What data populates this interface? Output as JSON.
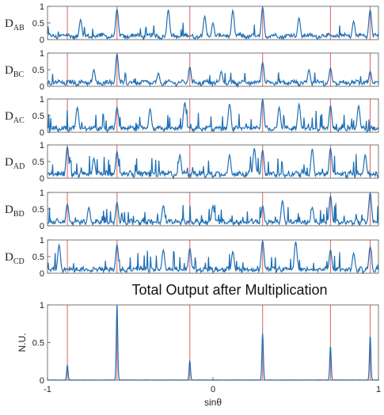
{
  "chart_data": {
    "type": "line",
    "xrange": [
      -1,
      1
    ],
    "red_markers_x": [
      -0.88,
      -0.58,
      -0.14,
      0.3,
      0.71,
      0.95
    ],
    "line_color": "#1f6fb5",
    "marker_color": "#e06060",
    "panels": [
      {
        "label": "D",
        "sub": "AB",
        "yticks": [
          "1",
          "0.5",
          "0"
        ],
        "peaks": [
          [
            -0.58,
            0.92
          ],
          [
            0.3,
            0.98
          ],
          [
            0.95,
            0.9
          ],
          [
            -0.27,
            0.9
          ],
          [
            0.12,
            0.88
          ],
          [
            -0.05,
            0.7
          ],
          [
            0.52,
            0.65
          ],
          [
            -0.8,
            0.6
          ],
          [
            0.85,
            0.55
          ],
          [
            0.0,
            0.5
          ]
        ]
      },
      {
        "label": "D",
        "sub": "BC",
        "yticks": [
          "1",
          "0.5",
          "0"
        ],
        "peaks": [
          [
            -0.58,
            0.98
          ],
          [
            0.3,
            0.72
          ],
          [
            -0.14,
            0.58
          ],
          [
            0.71,
            0.55
          ],
          [
            0.95,
            0.45
          ],
          [
            -0.72,
            0.5
          ],
          [
            0.05,
            0.45
          ],
          [
            0.58,
            0.5
          ],
          [
            -0.33,
            0.4
          ]
        ]
      },
      {
        "label": "D",
        "sub": "AC",
        "yticks": [
          "1",
          "0.5",
          "0"
        ],
        "peaks": [
          [
            -0.58,
            0.75
          ],
          [
            0.3,
            1.0
          ],
          [
            0.71,
            0.8
          ],
          [
            -0.17,
            0.9
          ],
          [
            0.1,
            0.85
          ],
          [
            -0.82,
            0.75
          ],
          [
            0.52,
            0.85
          ],
          [
            0.88,
            0.8
          ],
          [
            -0.38,
            0.7
          ],
          [
            0.4,
            0.75
          ]
        ]
      },
      {
        "label": "D",
        "sub": "AD",
        "yticks": [
          "1",
          "0.5",
          "0"
        ],
        "peaks": [
          [
            -0.88,
            0.95
          ],
          [
            0.71,
            0.9
          ],
          [
            0.3,
            0.85
          ],
          [
            -0.58,
            0.8
          ],
          [
            0.25,
            0.9
          ],
          [
            0.6,
            0.88
          ],
          [
            -0.2,
            0.7
          ],
          [
            0.1,
            0.7
          ],
          [
            0.92,
            0.7
          ],
          [
            -0.72,
            0.6
          ]
        ]
      },
      {
        "label": "D",
        "sub": "BD",
        "yticks": [
          "1",
          "0.5",
          "0"
        ],
        "peaks": [
          [
            0.95,
            1.0
          ],
          [
            0.71,
            0.9
          ],
          [
            -0.58,
            0.7
          ],
          [
            0.3,
            0.6
          ],
          [
            -0.88,
            0.65
          ],
          [
            0.42,
            0.75
          ],
          [
            -0.3,
            0.6
          ],
          [
            0.0,
            0.6
          ],
          [
            0.6,
            0.55
          ],
          [
            -0.75,
            0.55
          ]
        ]
      },
      {
        "label": "D",
        "sub": "CD",
        "yticks": [
          "1",
          "0.5",
          "0"
        ],
        "peaks": [
          [
            0.3,
            0.98
          ],
          [
            0.5,
            0.95
          ],
          [
            -0.58,
            0.85
          ],
          [
            0.95,
            0.8
          ],
          [
            -0.93,
            0.85
          ],
          [
            -0.14,
            0.75
          ],
          [
            0.71,
            0.7
          ],
          [
            -0.3,
            0.7
          ],
          [
            0.12,
            0.65
          ],
          [
            0.85,
            0.6
          ]
        ]
      }
    ],
    "total": {
      "title": "Total Output after Multiplication",
      "ylabel": "N.U.",
      "xlabel": "sinθ",
      "yticks": [
        "1",
        "0.5",
        "0"
      ],
      "xticks": [
        "-1",
        "0",
        "1"
      ],
      "peaks": [
        [
          -0.88,
          0.2
        ],
        [
          -0.58,
          1.0
        ],
        [
          -0.14,
          0.26
        ],
        [
          0.3,
          0.62
        ],
        [
          0.71,
          0.45
        ],
        [
          0.95,
          0.59
        ]
      ]
    }
  }
}
